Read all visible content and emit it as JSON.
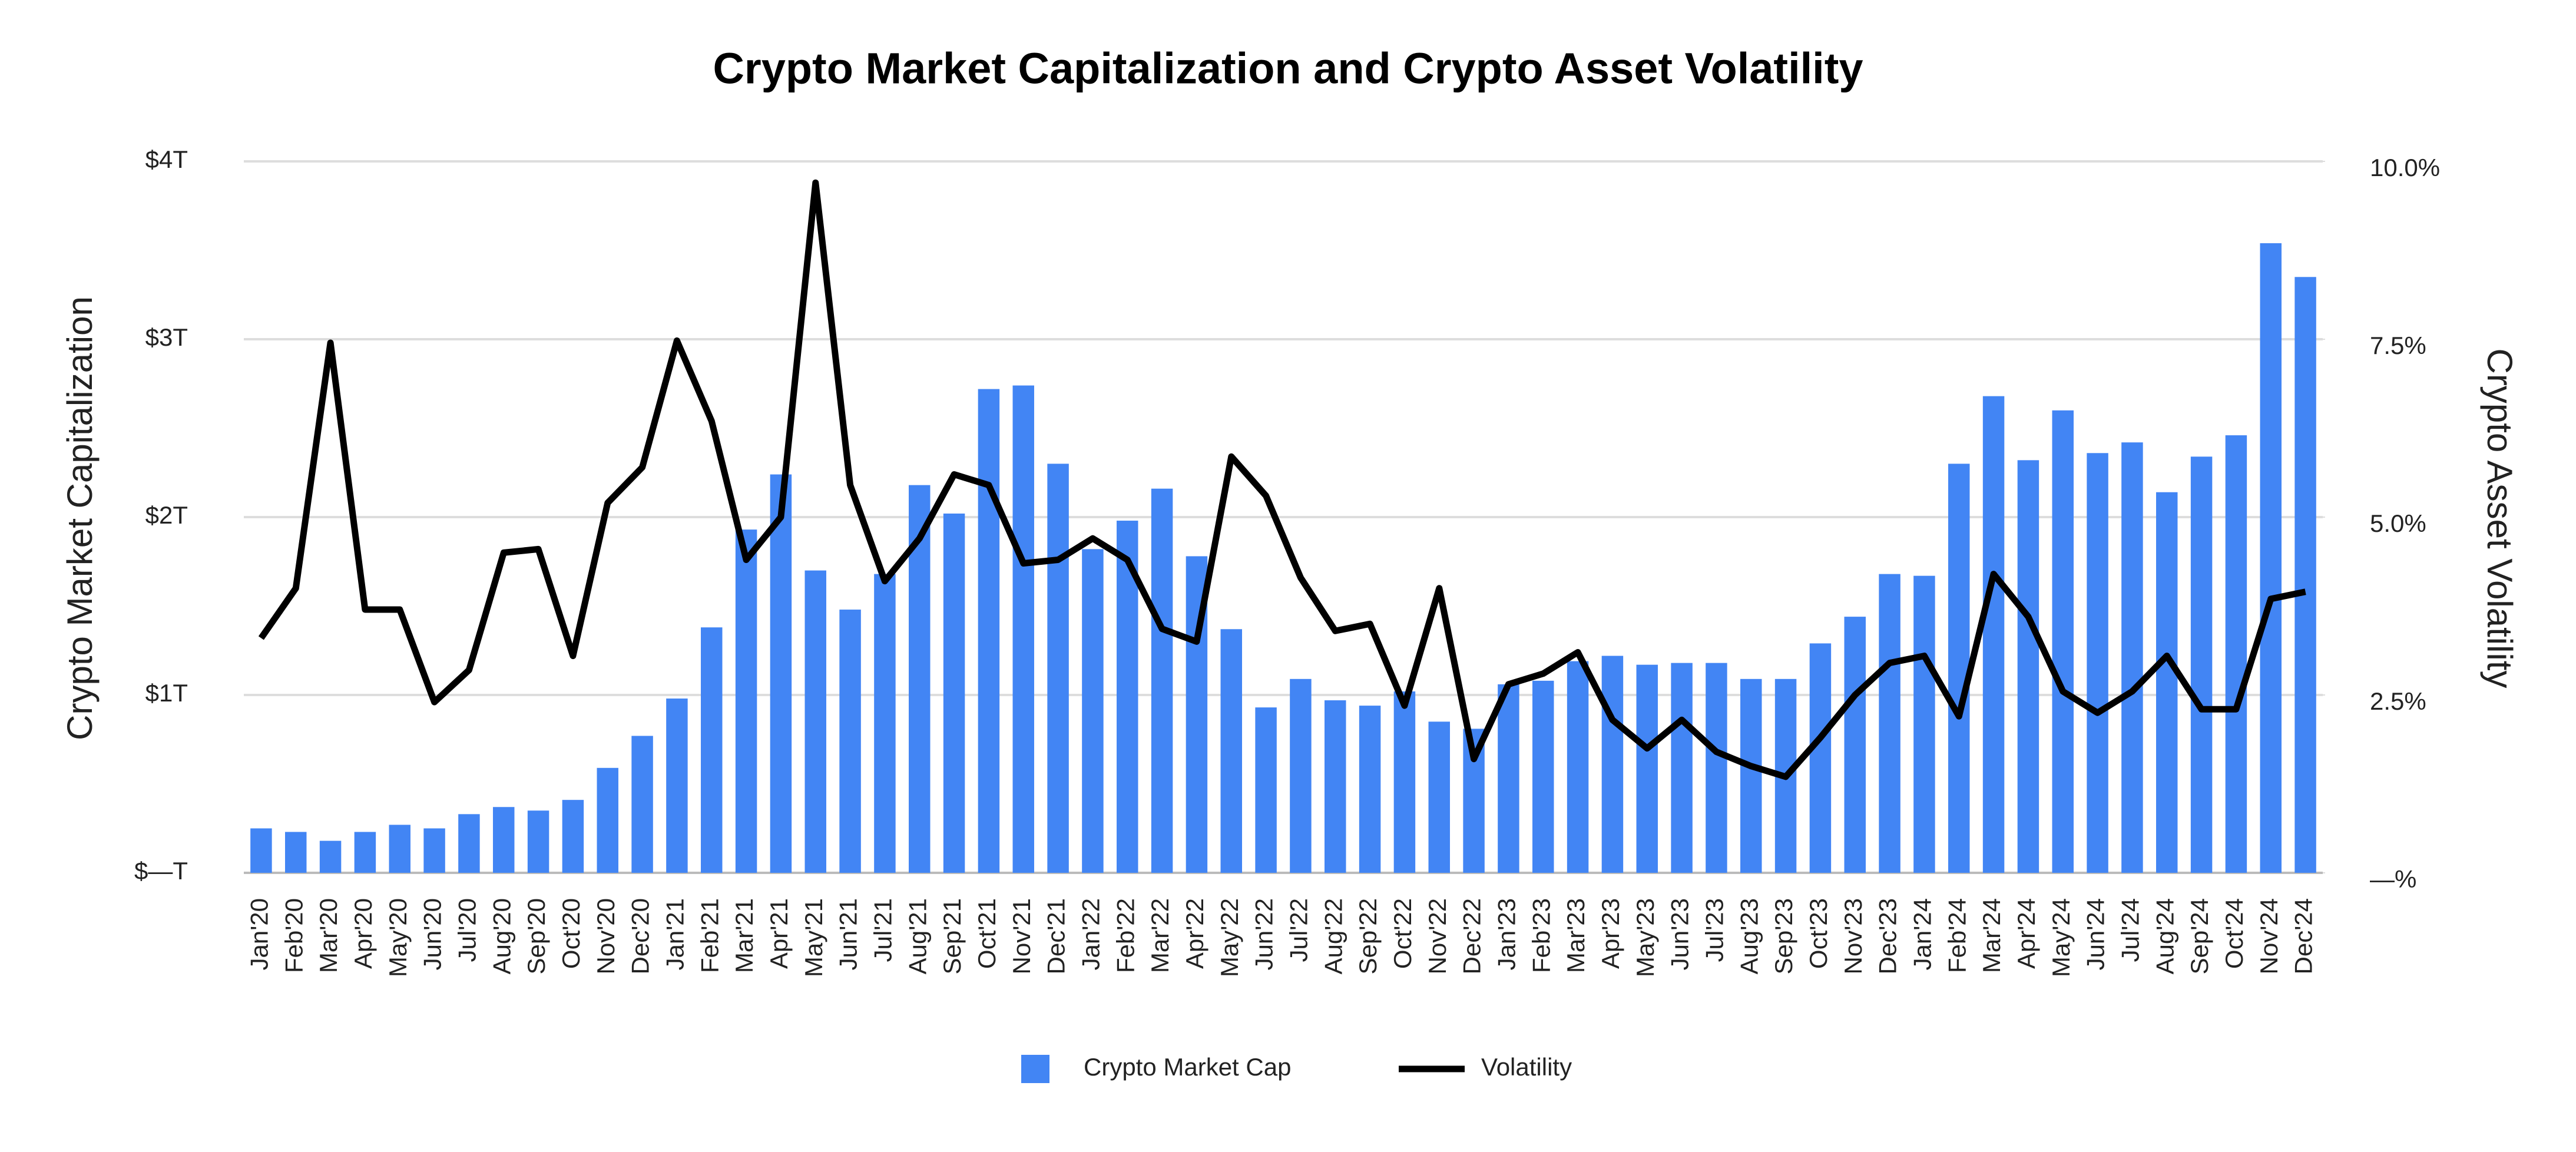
{
  "chart_data": {
    "type": "bar",
    "title": "Crypto Market Capitalization and Crypto Asset Volatility",
    "ylabel": "Crypto Market Capitalization",
    "y2label": "Crypto Asset Volatility",
    "categories": [
      "Jan'20",
      "Feb'20",
      "Mar'20",
      "Apr'20",
      "May'20",
      "Jun'20",
      "Jul'20",
      "Aug'20",
      "Sep'20",
      "Oct'20",
      "Nov'20",
      "Dec'20",
      "Jan'21",
      "Feb'21",
      "Mar'21",
      "Apr'21",
      "May'21",
      "Jun'21",
      "Jul'21",
      "Aug'21",
      "Sep'21",
      "Oct'21",
      "Nov'21",
      "Dec'21",
      "Jan'22",
      "Feb'22",
      "Mar'22",
      "Apr'22",
      "May'22",
      "Jun'22",
      "Jul'22",
      "Aug'22",
      "Sep'22",
      "Oct'22",
      "Nov'22",
      "Dec'22",
      "Jan'23",
      "Feb'23",
      "Mar'23",
      "Apr'23",
      "May'23",
      "Jun'23",
      "Jul'23",
      "Aug'23",
      "Sep'23",
      "Oct'23",
      "Nov'23",
      "Dec'23",
      "Jan'24",
      "Feb'24",
      "Mar'24",
      "Apr'24",
      "May'24",
      "Jun'24",
      "Jul'24",
      "Aug'24",
      "Sep'24",
      "Oct'24",
      "Nov'24",
      "Dec'24"
    ],
    "series": [
      {
        "name": "Crypto Market Cap",
        "type": "bar",
        "color": "#4285f4",
        "values": [
          0.25,
          0.23,
          0.18,
          0.23,
          0.27,
          0.25,
          0.33,
          0.37,
          0.35,
          0.41,
          0.59,
          0.77,
          0.98,
          1.38,
          1.93,
          2.24,
          1.7,
          1.48,
          1.68,
          2.18,
          2.02,
          2.72,
          2.74,
          2.3,
          1.82,
          1.98,
          2.16,
          1.78,
          1.37,
          0.93,
          1.09,
          0.97,
          0.94,
          1.02,
          0.85,
          0.81,
          1.06,
          1.08,
          1.19,
          1.22,
          1.17,
          1.18,
          1.18,
          1.09,
          1.09,
          1.29,
          1.44,
          1.68,
          1.67,
          2.3,
          2.68,
          2.32,
          2.6,
          2.36,
          2.42,
          2.14,
          2.34,
          2.46,
          3.54,
          3.35
        ]
      },
      {
        "name": "Volatility",
        "type": "line",
        "axis": "y2",
        "color": "#000000",
        "values": [
          3.3,
          4.0,
          7.45,
          3.7,
          3.7,
          2.4,
          2.85,
          4.5,
          4.55,
          3.05,
          5.2,
          5.7,
          7.48,
          6.35,
          4.4,
          5.0,
          9.7,
          5.45,
          4.1,
          4.7,
          5.6,
          5.45,
          4.35,
          4.4,
          4.7,
          4.4,
          3.43,
          3.25,
          5.85,
          5.3,
          4.15,
          3.4,
          3.5,
          2.35,
          4.0,
          1.6,
          2.65,
          2.8,
          3.1,
          2.15,
          1.75,
          2.15,
          1.7,
          1.5,
          1.35,
          1.9,
          2.5,
          2.95,
          3.05,
          2.2,
          4.2,
          3.6,
          2.55,
          2.25,
          2.55,
          3.05,
          2.3,
          2.3,
          3.85,
          3.95
        ]
      }
    ],
    "ylim": [
      0,
      4
    ],
    "yticks": [
      {
        "value": 0,
        "label": "$—T"
      },
      {
        "value": 1,
        "label": "$1T"
      },
      {
        "value": 2,
        "label": "$2T"
      },
      {
        "value": 3,
        "label": "$3T"
      },
      {
        "value": 4,
        "label": "$4T"
      }
    ],
    "y2lim": [
      0,
      10
    ],
    "y2ticks": [
      {
        "value": 0,
        "label": "—%"
      },
      {
        "value": 2.5,
        "label": "2.5%"
      },
      {
        "value": 5,
        "label": "5.0%"
      },
      {
        "value": 7.5,
        "label": "7.5%"
      },
      {
        "value": 10,
        "label": "10.0%"
      }
    ],
    "grid": true,
    "legend": "bottom"
  }
}
